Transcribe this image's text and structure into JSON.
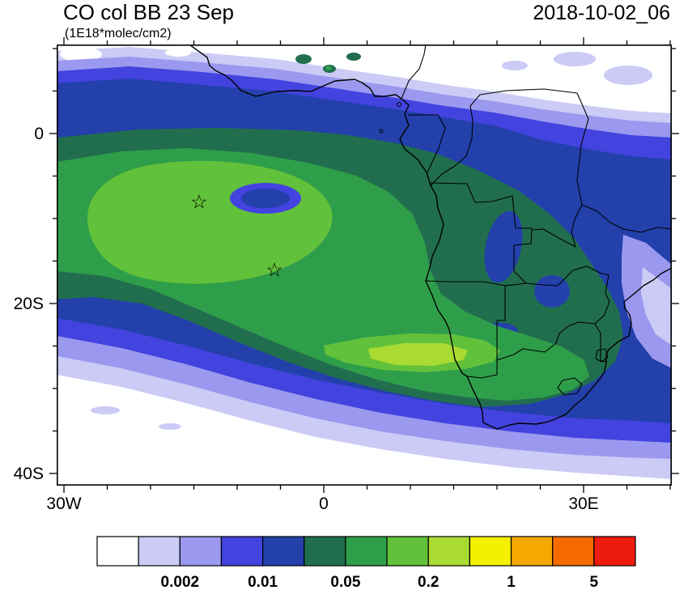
{
  "header": {
    "title": "CO col BB 23 Sep",
    "units_label": "(1E18*molec/cm2)",
    "datestamp": "2018-10-02_06"
  },
  "palette": [
    "#ffffff",
    "#cbcbf6",
    "#9a99ef",
    "#4343df",
    "#2340ab",
    "#216e4e",
    "#2f9e4a",
    "#62c13a",
    "#aadb32",
    "#f4f000",
    "#f6a800",
    "#f66b00",
    "#ee1c0c"
  ],
  "map": {
    "yticks": [
      {
        "label": "0",
        "lat": 0
      },
      {
        "label": "20S",
        "lat": -20
      },
      {
        "label": "40S",
        "lat": -40
      }
    ],
    "xticks": [
      {
        "label": "30W",
        "lon": -30
      },
      {
        "label": "0",
        "lon": 0
      },
      {
        "label": "30E",
        "lon": 30
      }
    ],
    "marker_glyph": "☆",
    "markers": [
      {
        "lon": -14.4,
        "lat": -8.0
      },
      {
        "lon": -5.7,
        "lat": -16.0
      }
    ]
  },
  "colorbar": {
    "labels": [
      {
        "text": "0.002",
        "boundary": 2
      },
      {
        "text": "0.01",
        "boundary": 4
      },
      {
        "text": "0.05",
        "boundary": 6
      },
      {
        "text": "0.2",
        "boundary": 8
      },
      {
        "text": "1",
        "boundary": 10
      },
      {
        "text": "5",
        "boundary": 12
      }
    ]
  },
  "chart_data": {
    "type": "heatmap",
    "subtype": "filled-contour map over geography",
    "title": "CO col BB 23 Sep",
    "units": "1E18*molec/cm2",
    "timestamp": "2018-10-02_06",
    "region": "South Atlantic and southern Africa",
    "lon_range": [
      -31,
      40
    ],
    "lat_range": [
      -41.5,
      10.5
    ],
    "xticks": [
      {
        "lon": -30,
        "label": "30W"
      },
      {
        "lon": 0,
        "label": "0"
      },
      {
        "lon": 30,
        "label": "30E"
      }
    ],
    "yticks": [
      {
        "lat": 0,
        "label": "0"
      },
      {
        "lat": -20,
        "label": "20S"
      },
      {
        "lat": -40,
        "label": "40S"
      }
    ],
    "contour_bounds_labeled": [
      0.002,
      0.01,
      0.05,
      0.2,
      1,
      5
    ],
    "color_bins": 13,
    "colorbar_colors": [
      "#ffffff",
      "#cbcbf6",
      "#9a99ef",
      "#4343df",
      "#2340ab",
      "#216e4e",
      "#2f9e4a",
      "#62c13a",
      "#aadb32",
      "#f4f000",
      "#f6a800",
      "#f66b00",
      "#ee1c0c"
    ],
    "legend_position": "bottom",
    "grid": false,
    "markers": [
      {
        "symbol": "star",
        "lon": -14.4,
        "lat": -8.0
      },
      {
        "symbol": "star",
        "lon": -5.7,
        "lat": -16.0
      }
    ],
    "field_summary": "Broad biomass-burning CO plume: highest values (0.2-1, yellow-green) near 8-17E / 22-26S; large 0.1-0.5 green core over the eastern tropical South Atlantic (25W-10E, 2-25S) with a local navy-blue minimum near 7W/7S; 0.02-0.1 teal/navy over central-southern Africa; a navy band along the Gulf of Guinea coast; values decay through blue, periwinkle and pale lavender to below 0.002 (white) south of ~35S, in the far northwest corner and over land northeast of the Congo basin."
  }
}
